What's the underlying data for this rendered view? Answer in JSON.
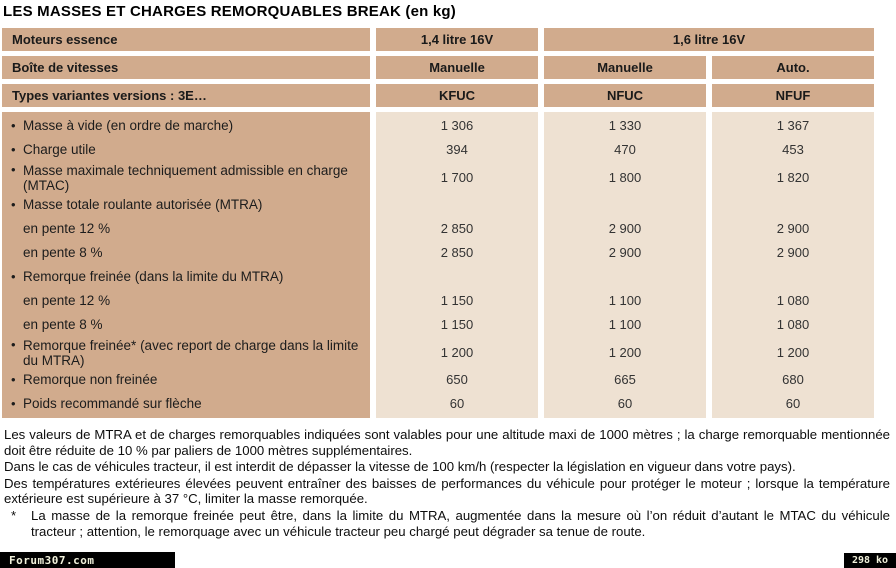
{
  "title": "LES MASSES ET CHARGES REMORQUABLES BREAK (en kg)",
  "colors": {
    "table_tan": "#d1ab8d",
    "table_beige": "#eee1d2",
    "bar_bg": "#000000",
    "bar_text": "#f2f2dc"
  },
  "table": {
    "bullet_char": "•",
    "header": {
      "row1_label": "Moteurs essence",
      "row1_col1": "1,4 litre 16V",
      "row1_col23": "1,6 litre 16V",
      "row2_label": "Boîte de vitesses",
      "row2_cols": [
        "Manuelle",
        "Manuelle",
        "Auto."
      ],
      "row3_label": "Types variantes versions : 3E…",
      "row3_cols": [
        "KFUC",
        "NFUC",
        "NFUF"
      ]
    },
    "rows": [
      {
        "label": "Masse à vide (en ordre de marche)",
        "bullet": true,
        "values": [
          "1 306",
          "1 330",
          "1 367"
        ]
      },
      {
        "label": "Charge utile",
        "bullet": true,
        "values": [
          "394",
          "470",
          "453"
        ]
      },
      {
        "label": "Masse maximale techniquement admissible en charge (MTAC)",
        "bullet": true,
        "values": [
          "1 700",
          "1 800",
          "1 820"
        ]
      },
      {
        "label": "Masse totale roulante autorisée (MTRA)",
        "bullet": true,
        "values": [
          "",
          "",
          ""
        ]
      },
      {
        "label": "en pente 12 %",
        "bullet": false,
        "values": [
          "2 850",
          "2 900",
          "2 900"
        ]
      },
      {
        "label": "en pente 8 %",
        "bullet": false,
        "values": [
          "2 850",
          "2 900",
          "2 900"
        ]
      },
      {
        "label": "Remorque freinée (dans la limite du MTRA)",
        "bullet": true,
        "values": [
          "",
          "",
          ""
        ]
      },
      {
        "label": "en pente 12 %",
        "bullet": false,
        "values": [
          "1 150",
          "1 100",
          "1 080"
        ]
      },
      {
        "label": "en pente 8 %",
        "bullet": false,
        "values": [
          "1 150",
          "1 100",
          "1 080"
        ]
      },
      {
        "label": "Remorque freinée* (avec report de charge dans la limite du MTRA)",
        "bullet": true,
        "values": [
          "1 200",
          "1 200",
          "1 200"
        ]
      },
      {
        "label": "Remorque non freinée",
        "bullet": true,
        "values": [
          "650",
          "665",
          "680"
        ]
      },
      {
        "label": "Poids recommandé sur flèche",
        "bullet": true,
        "values": [
          "60",
          "60",
          "60"
        ]
      }
    ]
  },
  "notes": {
    "p1": "Les valeurs de MTRA et de charges remorquables indiquées sont valables pour une altitude maxi de 1000 mètres ; la charge remorquable mentionnée doit être réduite de 10 % par paliers de 1000 mètres supplémentaires.",
    "p2": "Dans le cas de véhicules tracteur, il est interdit de dépasser la vitesse de 100 km/h (respecter la législation en vigueur dans votre pays).",
    "p3": "Des températures extérieures élevées peuvent entraîner des baisses de performances du véhicule pour protéger le moteur ; lorsque la température extérieure est supérieure à 37 °C, limiter la masse remorquée.",
    "footnote_marker": "*",
    "p4": "La masse de la remorque freinée peut être, dans la limite du MTRA, augmentée dans la mesure où l’on réduit d’autant le MTAC du véhicule tracteur ; attention, le remorquage avec un véhicule tracteur peu chargé peut dégrader sa tenue de route."
  },
  "footer": {
    "watermark": "Forum307.com",
    "file_size": "298 ko"
  }
}
